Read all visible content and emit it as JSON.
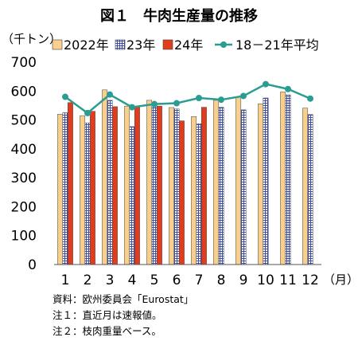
{
  "chart_data": {
    "type": "bar",
    "title": "図１　牛肉生産量の推移",
    "ylabel": "（千トン）",
    "xunit": "（月）",
    "ylim": [
      0,
      700
    ],
    "yticks": [
      0,
      100,
      200,
      300,
      400,
      500,
      600,
      700
    ],
    "categories": [
      "1",
      "2",
      "3",
      "4",
      "5",
      "6",
      "7",
      "8",
      "9",
      "10",
      "11",
      "12"
    ],
    "series": [
      {
        "name": "2022年",
        "kind": "bar",
        "color": "#F9CF8E",
        "values": [
          520,
          515,
          604,
          548,
          568,
          543,
          512,
          568,
          580,
          556,
          597,
          541
        ]
      },
      {
        "name": "23年",
        "kind": "bar",
        "color": "#3B4DA8",
        "values": [
          525,
          490,
          568,
          477,
          560,
          538,
          487,
          544,
          535,
          576,
          587,
          519
        ]
      },
      {
        "name": "24年",
        "kind": "bar",
        "color": "#E03C1E",
        "values": [
          560,
          530,
          546,
          546,
          548,
          497,
          544,
          null,
          null,
          null,
          null,
          null
        ]
      },
      {
        "name": "18－21年平均",
        "kind": "line",
        "color": "#2A9D92",
        "values": [
          580,
          524,
          588,
          544,
          555,
          558,
          576,
          570,
          583,
          624,
          607,
          574
        ]
      }
    ],
    "legend_position": "top",
    "grid": false
  },
  "notes": [
    "資料：欧州委員会「Eurostat」",
    "注１：直近月は速報値。",
    "注２：枝肉重量ベース。"
  ]
}
